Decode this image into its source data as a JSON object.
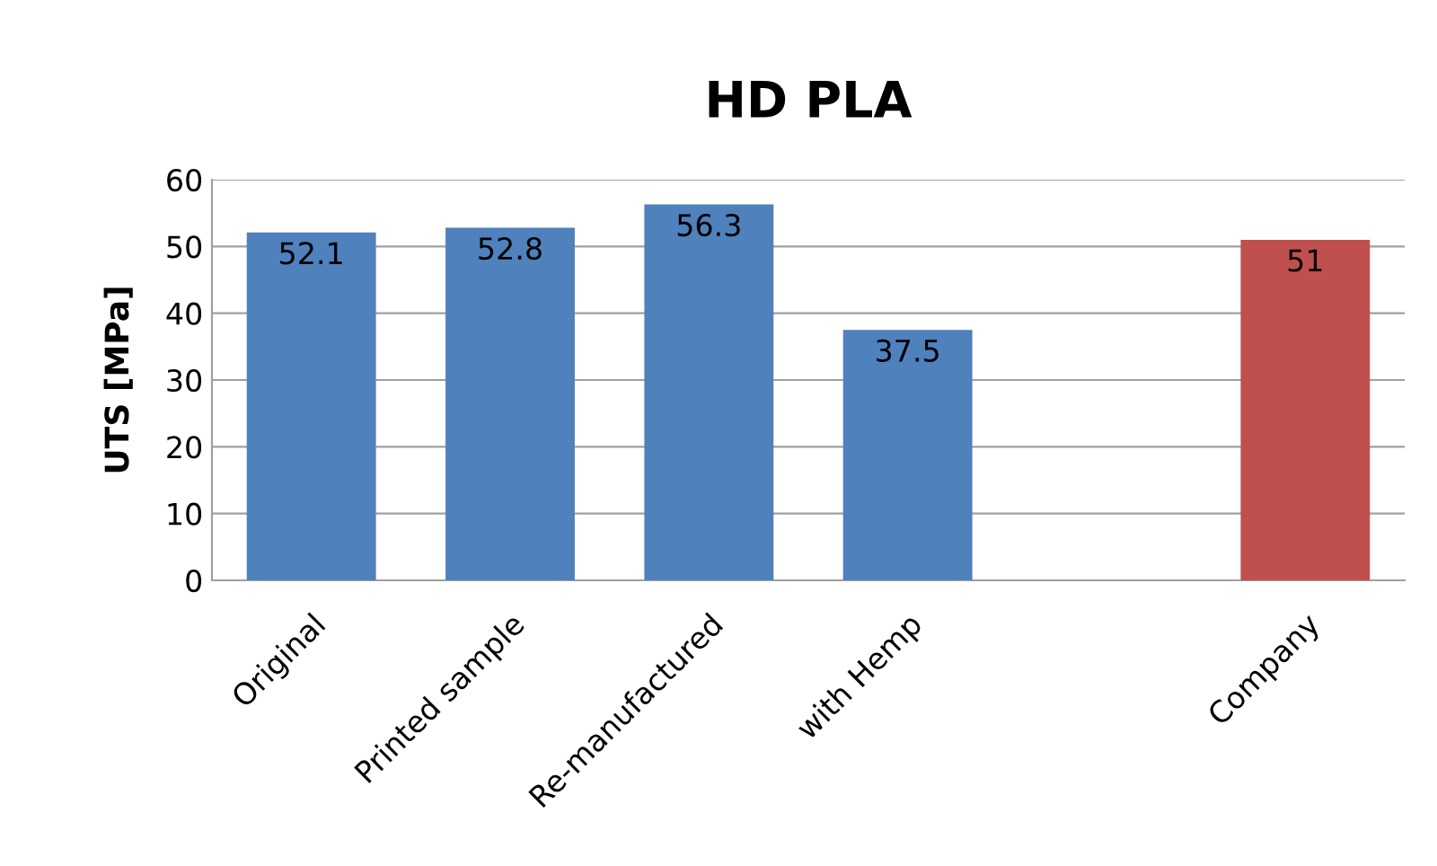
{
  "chart_data": {
    "type": "bar",
    "title": "HD PLA",
    "ylabel": "UTS [MPa]",
    "categories": [
      "Original",
      "Printed sample",
      "Re-manufactured",
      "with Hemp",
      null,
      "Company"
    ],
    "values": [
      52.1,
      52.8,
      56.3,
      37.5,
      null,
      51
    ],
    "colors": [
      "#4f81bd",
      "#4f81bd",
      "#4f81bd",
      "#4f81bd",
      null,
      "#c0504d"
    ],
    "ylim": [
      0,
      60
    ],
    "yticks": [
      0,
      10,
      20,
      30,
      40,
      50,
      60
    ],
    "grid": "y",
    "data_labels": true
  }
}
